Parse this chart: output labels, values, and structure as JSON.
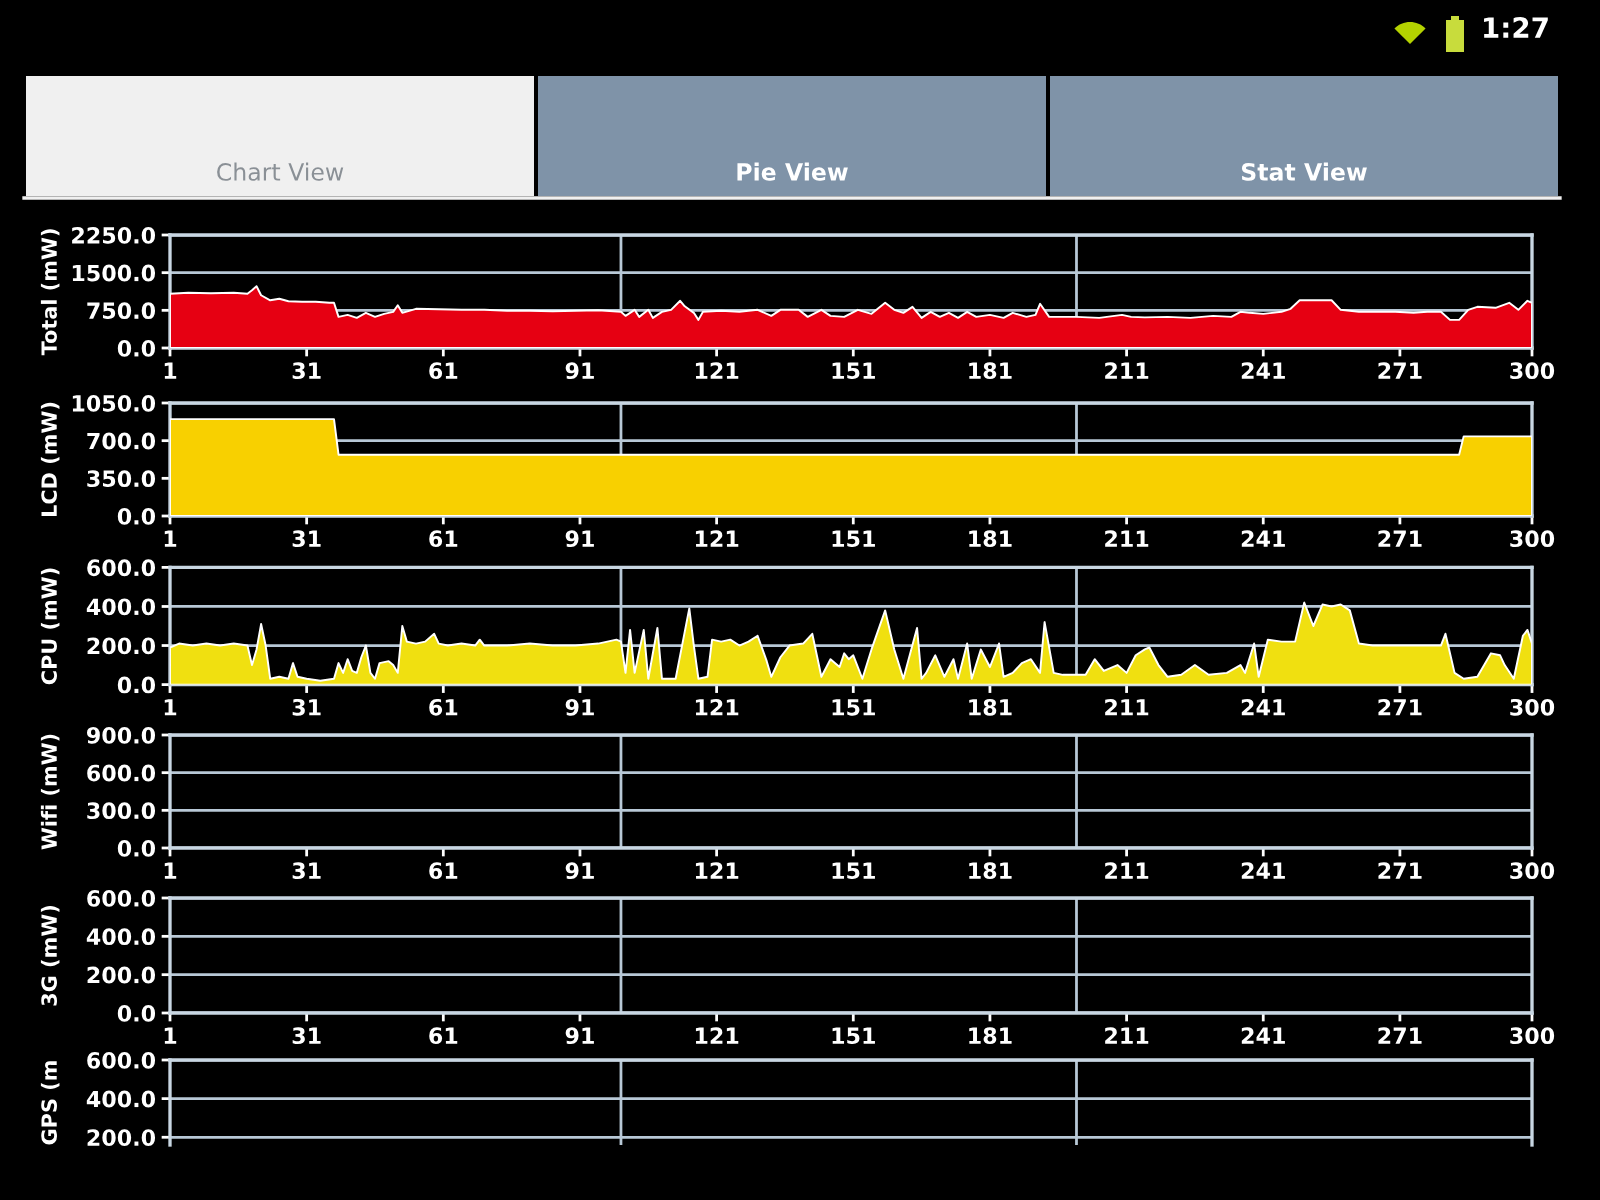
{
  "chart_data": [
    {
      "type": "area",
      "ylabel": "Total (mW)",
      "color": "#e60012",
      "x": [
        1,
        5,
        10,
        15,
        18,
        19,
        20,
        21,
        23,
        25,
        27,
        30,
        33,
        36,
        37,
        38,
        40,
        42,
        44,
        46,
        48,
        50,
        51,
        52,
        55,
        60,
        65,
        70,
        75,
        80,
        85,
        90,
        95,
        100,
        101,
        103,
        104,
        106,
        107,
        109,
        111,
        113,
        114,
        116,
        117,
        118,
        122,
        126,
        130,
        133,
        135,
        139,
        141,
        144,
        146,
        149,
        152,
        155,
        158,
        160,
        162,
        164,
        166,
        168,
        170,
        172,
        174,
        176,
        178,
        181,
        184,
        186,
        189,
        191,
        192,
        194,
        200,
        205,
        210,
        212,
        215,
        220,
        225,
        230,
        234,
        236,
        238,
        241,
        245,
        247,
        249,
        252,
        256,
        258,
        262,
        266,
        270,
        274,
        277,
        280,
        282,
        284,
        286,
        288,
        292,
        295,
        297,
        299,
        300
      ],
      "values": [
        1080,
        1100,
        1090,
        1100,
        1080,
        1150,
        1230,
        1050,
        950,
        980,
        930,
        920,
        920,
        900,
        900,
        620,
        660,
        600,
        700,
        620,
        680,
        720,
        850,
        700,
        780,
        770,
        760,
        760,
        740,
        740,
        730,
        740,
        750,
        720,
        640,
        760,
        620,
        760,
        600,
        720,
        760,
        940,
        830,
        700,
        560,
        720,
        740,
        720,
        760,
        640,
        760,
        760,
        620,
        760,
        640,
        620,
        760,
        680,
        900,
        760,
        700,
        820,
        600,
        720,
        620,
        700,
        600,
        720,
        620,
        660,
        600,
        700,
        620,
        660,
        880,
        620,
        620,
        600,
        660,
        620,
        610,
        620,
        600,
        640,
        620,
        720,
        700,
        680,
        720,
        780,
        950,
        950,
        950,
        760,
        720,
        720,
        720,
        700,
        720,
        720,
        560,
        560,
        760,
        820,
        800,
        900,
        760,
        940,
        900
      ],
      "xlim": [
        1,
        300
      ],
      "ylim": [
        0,
        2250
      ],
      "xticks": [
        1,
        31,
        61,
        91,
        121,
        151,
        181,
        211,
        241,
        271,
        300
      ],
      "yticks": [
        {
          "value": 0,
          "label": "0.0"
        },
        {
          "value": 750,
          "label": "750.0"
        },
        {
          "value": 1500,
          "label": "1500.0"
        },
        {
          "value": 2250,
          "label": "2250.0"
        }
      ],
      "grid": "y",
      "ref_lines": [
        {
          "axis": "x",
          "value": 100,
          "color": "#b8c8d6"
        },
        {
          "axis": "x",
          "value": 200,
          "color": "#b8c8d6"
        }
      ],
      "annotations": [
        "Chart View",
        "Pie View",
        "Stat View",
        "1:27"
      ]
    },
    {
      "type": "area",
      "ylabel": "LCD (mW)",
      "color": "#f8d000",
      "x": [
        1,
        37,
        38,
        284,
        285,
        300
      ],
      "values": [
        900,
        900,
        570,
        570,
        740,
        740
      ],
      "xlim": [
        1,
        300
      ],
      "ylim": [
        0,
        1050
      ],
      "xticks": [
        1,
        31,
        61,
        91,
        121,
        151,
        181,
        211,
        241,
        271,
        300
      ],
      "yticks": [
        {
          "value": 0,
          "label": "0.0"
        },
        {
          "value": 350,
          "label": "350.0"
        },
        {
          "value": 700,
          "label": "700.0"
        },
        {
          "value": 1050,
          "label": "1050.0"
        }
      ],
      "grid": "y",
      "ref_lines": [
        {
          "axis": "x",
          "value": 100,
          "color": "#b8c8d6"
        },
        {
          "axis": "x",
          "value": 200,
          "color": "#b8c8d6"
        }
      ]
    },
    {
      "type": "area",
      "ylabel": "CPU (mW)",
      "color": "#f0e010",
      "x": [
        1,
        3,
        6,
        9,
        12,
        15,
        18,
        19,
        20,
        21,
        22,
        23,
        25,
        27,
        28,
        29,
        31,
        34,
        37,
        38,
        39,
        40,
        41,
        42,
        43,
        44,
        45,
        46,
        47,
        49,
        50,
        51,
        52,
        53,
        55,
        57,
        59,
        60,
        62,
        65,
        68,
        69,
        70,
        75,
        80,
        85,
        90,
        95,
        99,
        100,
        101,
        102,
        103,
        105,
        106,
        108,
        109,
        112,
        115,
        116,
        117,
        119,
        120,
        122,
        124,
        126,
        128,
        130,
        132,
        133,
        135,
        137,
        140,
        142,
        144,
        146,
        148,
        149,
        150,
        151,
        153,
        155,
        158,
        160,
        162,
        165,
        166,
        167,
        169,
        171,
        173,
        174,
        176,
        177,
        179,
        181,
        183,
        184,
        186,
        188,
        190,
        192,
        193,
        195,
        197,
        200,
        202,
        204,
        206,
        209,
        211,
        213,
        215,
        216,
        218,
        220,
        223,
        226,
        229,
        233,
        236,
        237,
        239,
        240,
        242,
        245,
        248,
        250,
        252,
        254,
        256,
        258,
        260,
        262,
        265,
        270,
        275,
        280,
        281,
        283,
        285,
        288,
        291,
        293,
        294,
        296,
        298,
        299,
        300
      ],
      "values": [
        190,
        210,
        200,
        210,
        200,
        210,
        200,
        100,
        180,
        310,
        200,
        30,
        40,
        30,
        110,
        40,
        30,
        20,
        30,
        110,
        60,
        130,
        70,
        60,
        140,
        200,
        60,
        30,
        110,
        120,
        100,
        60,
        300,
        220,
        210,
        220,
        260,
        210,
        200,
        210,
        200,
        230,
        200,
        200,
        210,
        200,
        200,
        210,
        230,
        220,
        60,
        280,
        60,
        280,
        30,
        290,
        30,
        30,
        390,
        200,
        30,
        40,
        230,
        220,
        230,
        200,
        220,
        250,
        120,
        40,
        140,
        200,
        210,
        260,
        40,
        130,
        90,
        160,
        130,
        150,
        30,
        180,
        380,
        180,
        30,
        290,
        30,
        60,
        150,
        40,
        130,
        30,
        210,
        30,
        180,
        90,
        210,
        40,
        60,
        110,
        130,
        60,
        320,
        60,
        50,
        50,
        50,
        130,
        70,
        100,
        60,
        150,
        180,
        190,
        100,
        40,
        50,
        100,
        50,
        60,
        100,
        60,
        210,
        40,
        230,
        220,
        220,
        420,
        300,
        410,
        400,
        410,
        380,
        210,
        200,
        200,
        200,
        200,
        260,
        60,
        30,
        40,
        160,
        150,
        100,
        30,
        250,
        280,
        210
      ],
      "xlim": [
        1,
        300
      ],
      "ylim": [
        0,
        600
      ],
      "xticks": [
        1,
        31,
        61,
        91,
        121,
        151,
        181,
        211,
        241,
        271,
        300
      ],
      "yticks": [
        {
          "value": 0,
          "label": "0.0"
        },
        {
          "value": 200,
          "label": "200.0"
        },
        {
          "value": 400,
          "label": "400.0"
        },
        {
          "value": 600,
          "label": "600.0"
        }
      ],
      "grid": "y",
      "ref_lines": [
        {
          "axis": "x",
          "value": 100,
          "color": "#b8c8d6"
        },
        {
          "axis": "x",
          "value": 200,
          "color": "#b8c8d6"
        }
      ]
    },
    {
      "type": "area",
      "ylabel": "Wifi (mW)",
      "xlim": [
        1,
        300
      ],
      "ylim": [
        0,
        900
      ],
      "xticks": [
        1,
        31,
        61,
        91,
        121,
        151,
        181,
        211,
        241,
        271,
        300
      ],
      "yticks": [
        {
          "value": 0,
          "label": "0.0"
        },
        {
          "value": 300,
          "label": "300.0"
        },
        {
          "value": 600,
          "label": "600.0"
        },
        {
          "value": 900,
          "label": "900.0"
        }
      ],
      "grid": "y",
      "ref_lines": [
        {
          "axis": "x",
          "value": 100,
          "color": "#b8c8d6"
        },
        {
          "axis": "x",
          "value": 200,
          "color": "#b8c8d6"
        }
      ]
    },
    {
      "type": "area",
      "ylabel": "3G (mW)",
      "xlim": [
        1,
        300
      ],
      "ylim": [
        0,
        600
      ],
      "xticks": [
        1,
        31,
        61,
        91,
        121,
        151,
        181,
        211,
        241,
        271,
        300
      ],
      "yticks": [
        {
          "value": 0,
          "label": "0.0"
        },
        {
          "value": 200,
          "label": "200.0"
        },
        {
          "value": 400,
          "label": "400.0"
        },
        {
          "value": 600,
          "label": "600.0"
        }
      ],
      "grid": "y",
      "ref_lines": [
        {
          "axis": "x",
          "value": 100,
          "color": "#b8c8d6"
        },
        {
          "axis": "x",
          "value": 200,
          "color": "#b8c8d6"
        }
      ]
    },
    {
      "type": "area",
      "ylabel": "GPS (m",
      "xlim": [
        1,
        300
      ],
      "ylim": [
        160,
        600
      ],
      "yticks": [
        {
          "value": 200,
          "label": "200.0"
        },
        {
          "value": 400,
          "label": "400.0"
        },
        {
          "value": 600,
          "label": "600.0"
        }
      ],
      "grid": "y",
      "tick_labels": "y",
      "ref_lines": [
        {
          "axis": "x",
          "value": 100,
          "color": "#b8c8d6"
        },
        {
          "axis": "x",
          "value": 200,
          "color": "#b8c8d6"
        }
      ]
    }
  ]
}
